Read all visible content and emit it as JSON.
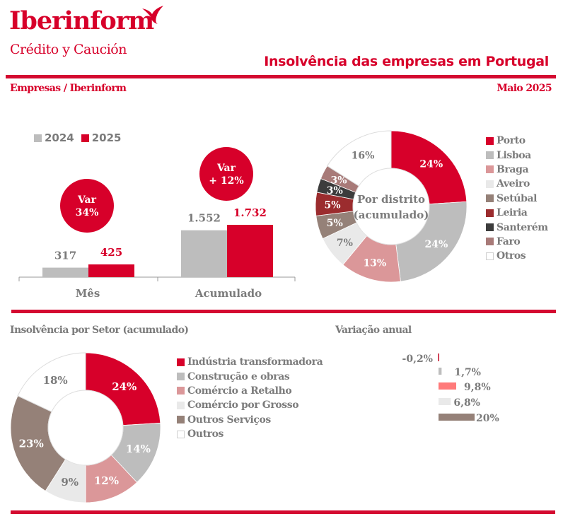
{
  "header": {
    "brand": "Iberinform",
    "brand_sub": "Crédito y Caución",
    "title": "Insolvência das empresas em Portugal",
    "subtitle_left": "Empresas / Iberinform",
    "subtitle_right": "Maio 2025"
  },
  "colors": {
    "brand_red": "#d7002a",
    "grey_text": "#7b7b7b"
  },
  "chart_data": [
    {
      "type": "bar",
      "title": "",
      "categories": [
        "Mês",
        "Acumulado"
      ],
      "series": [
        {
          "name": "2024",
          "color": "#bdbdbd",
          "label_color": "#7b7b7b",
          "values": [
            317,
            1552
          ],
          "labels": [
            "317",
            "1.552"
          ]
        },
        {
          "name": "2025",
          "color": "#d7002a",
          "label_color": "#d7002a",
          "values": [
            425,
            1732
          ],
          "labels": [
            "425",
            "1.732"
          ]
        }
      ],
      "annotations": [
        {
          "category": "Mês",
          "line1": "Var",
          "line2": "34%"
        },
        {
          "category": "Acumulado",
          "line1": "Var",
          "line2": "+ 12%"
        }
      ],
      "legend_position": "top-left",
      "xlabel": "",
      "ylabel": "",
      "grid": false
    },
    {
      "type": "pie",
      "variant": "donut",
      "title": "Por distrito (acumulado)",
      "center_label": [
        "Por distrito",
        "(acumulado)"
      ],
      "slices": [
        {
          "label": "Porto",
          "value": 24,
          "text": "24%",
          "color": "#d7002a",
          "text_color": "#ffffff"
        },
        {
          "label": "Lisboa",
          "value": 24,
          "text": "24%",
          "color": "#bdbdbd",
          "text_color": "#ffffff"
        },
        {
          "label": "Braga",
          "value": 13,
          "text": "13%",
          "color": "#db9799",
          "text_color": "#ffffff"
        },
        {
          "label": "Aveiro",
          "value": 7,
          "text": "7%",
          "color": "#e9e9e9",
          "text_color": "#7b7b7b"
        },
        {
          "label": "Setúbal",
          "value": 5,
          "text": "5%",
          "color": "#958178",
          "text_color": "#ffffff"
        },
        {
          "label": "Leiria",
          "value": 5,
          "text": "5%",
          "color": "#9b2c2e",
          "text_color": "#ffffff"
        },
        {
          "label": "Santerém",
          "value": 3,
          "text": "3%",
          "color": "#3c3c3c",
          "text_color": "#ffffff"
        },
        {
          "label": "Faro",
          "value": 3,
          "text": "3%",
          "color": "#a87a78",
          "text_color": "#ffffff"
        },
        {
          "label": "Otros",
          "value": 16,
          "text": "16%",
          "color": "#ffffff",
          "text_color": "#7b7b7b"
        }
      ],
      "legend_position": "right"
    },
    {
      "type": "pie",
      "variant": "donut",
      "title": "Insolvência por Setor (acumulado)",
      "slices": [
        {
          "label": "Indústria transformadora",
          "value": 24,
          "text": "24%",
          "color": "#d7002a",
          "text_color": "#ffffff"
        },
        {
          "label": "Construção e obras",
          "value": 14,
          "text": "14%",
          "color": "#bdbdbd",
          "text_color": "#ffffff"
        },
        {
          "label": "Comércio a Retalho",
          "value": 12,
          "text": "12%",
          "color": "#db9799",
          "text_color": "#ffffff"
        },
        {
          "label": "Comércio por Grosso",
          "value": 9,
          "text": "9%",
          "color": "#e9e9e9",
          "text_color": "#7b7b7b"
        },
        {
          "label": "Outros Serviços",
          "value": 23,
          "text": "23%",
          "color": "#958178",
          "text_color": "#ffffff"
        },
        {
          "label": "Outros",
          "value": 18,
          "text": "18%",
          "color": "#ffffff",
          "text_color": "#7b7b7b"
        }
      ],
      "legend_position": "right"
    },
    {
      "type": "bar",
      "orientation": "horizontal",
      "title": "Variação anual",
      "categories": [
        "Indústria transformadora",
        "Construção e obras",
        "Comércio a Retalho",
        "Comércio por Grosso",
        "Outros Serviços"
      ],
      "values": [
        -0.2,
        1.7,
        9.8,
        6.8,
        20
      ],
      "labels": [
        "-0,2%",
        "1,7%",
        "9,8%",
        "6,8%",
        "20%"
      ],
      "colors": [
        "#c0001f",
        "#bdbdbd",
        "#ff7a7a",
        "#e9e9e9",
        "#958178"
      ],
      "grid": false
    }
  ]
}
